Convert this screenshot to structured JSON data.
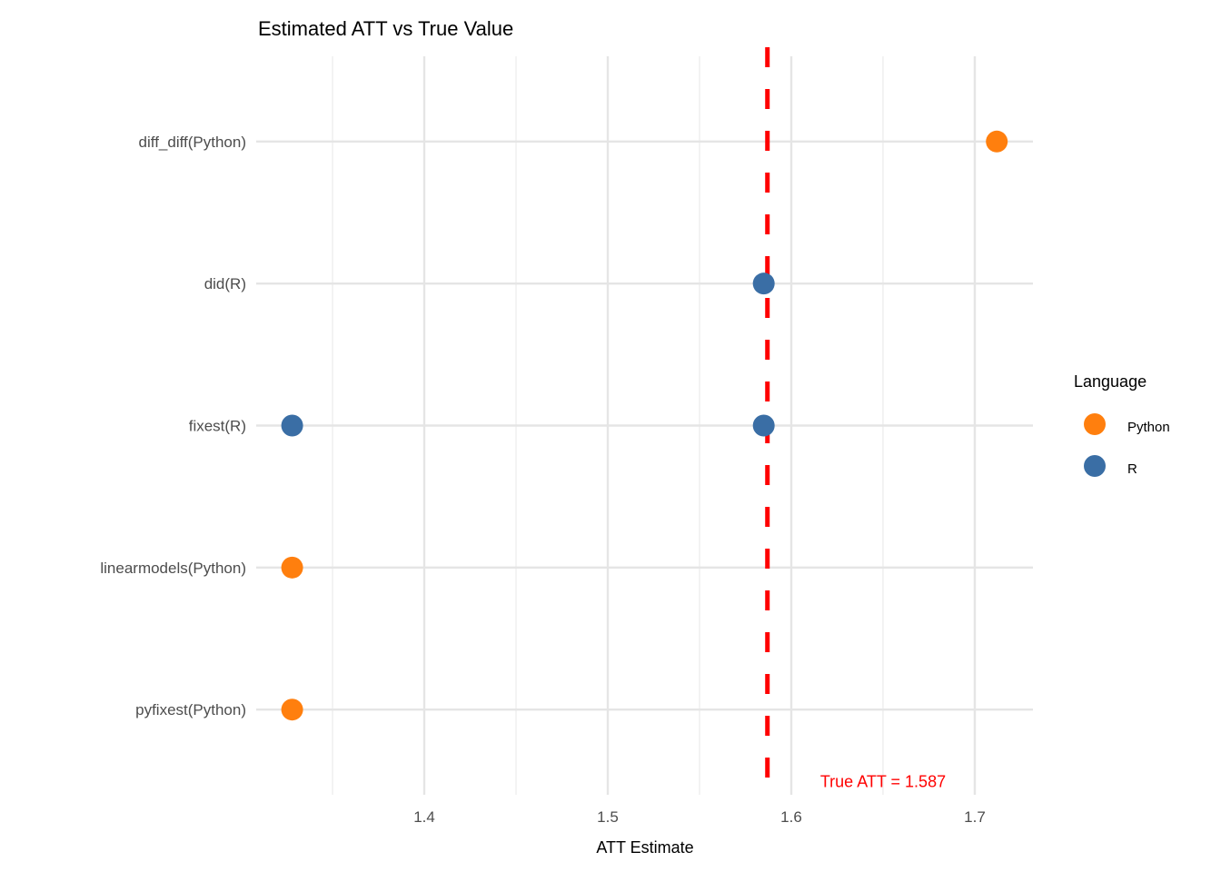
{
  "chart_data": {
    "type": "scatter",
    "title": "Estimated ATT vs True Value",
    "xlabel": "ATT Estimate",
    "ylabel": "",
    "xlim": [
      1.3084,
      1.7317
    ],
    "x_ticks": [
      1.4,
      1.5,
      1.6,
      1.7
    ],
    "x_tick_labels": [
      "1.4",
      "1.5",
      "1.6",
      "1.7"
    ],
    "x_minor_ticks": [
      1.35,
      1.45,
      1.55,
      1.65
    ],
    "categories": [
      "pyfixest(Python)",
      "linearmodels(Python)",
      "fixest(R)",
      "did(R)",
      "diff_diff(Python)"
    ],
    "grid": true,
    "points": [
      {
        "method": "diff_diff(Python)",
        "estimate": 1.712,
        "language": "Python"
      },
      {
        "method": "did(R)",
        "estimate": 1.585,
        "language": "R"
      },
      {
        "method": "fixest(R)",
        "estimate": 1.328,
        "language": "R"
      },
      {
        "method": "fixest(R)",
        "estimate": 1.585,
        "language": "R"
      },
      {
        "method": "linearmodels(Python)",
        "estimate": 1.328,
        "language": "Python"
      },
      {
        "method": "pyfixest(Python)",
        "estimate": 1.328,
        "language": "Python"
      }
    ],
    "reference_line": {
      "x": 1.587,
      "color": "#FF0000",
      "style": "dashed"
    },
    "annotation": {
      "text": "True ATT = 1.587",
      "x": 1.65,
      "y": 0.5,
      "color": "#FF0000"
    },
    "legend": {
      "title": "Language",
      "placement": "right",
      "entries": [
        {
          "label": "Python",
          "color": "#FF7F0E"
        },
        {
          "label": "R",
          "color": "#3A6EA5"
        }
      ]
    }
  }
}
